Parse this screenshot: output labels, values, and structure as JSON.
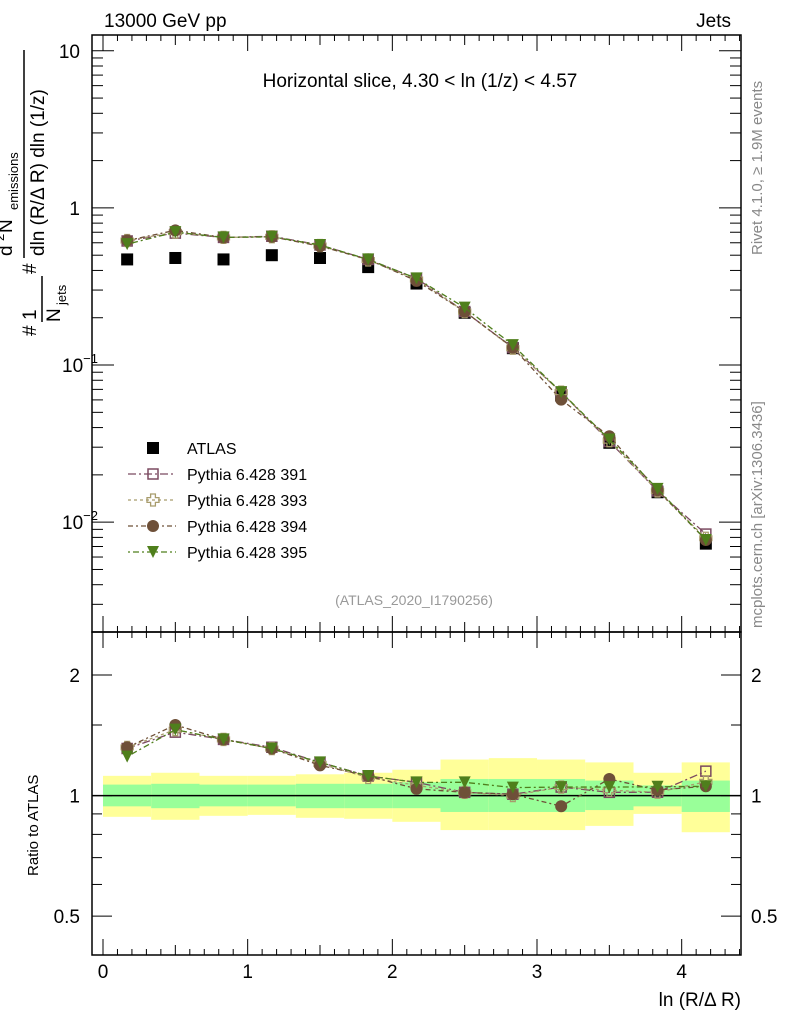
{
  "header": {
    "left": "13000 GeV pp",
    "right": "Jets",
    "side_top": "Rivet 4.1.0, ≥ 1.9M events",
    "side_bottom": "mcplots.cern.ch [arXiv:1306.3436]",
    "analysis": "(ATLAS_2020_I1790256)"
  },
  "chart_data": [
    {
      "type": "scatter",
      "title": "Horizontal slice, 4.30 < ln (1/z) < 4.57",
      "xlabel": "ln (R/Δ R)",
      "ylabel": "1/N_jets d²N_emissions / dln (R/Δ R) dln (1/z)",
      "ylabel_parts": {
        "one": "1",
        "njets": "N",
        "njets_sub": "jets",
        "d2n": "d",
        "d2n_sup": "2",
        "nem": " N",
        "nem_sub": "emissions",
        "den": "dln (R/Δ R) dln (1/z)",
        "hash": "#"
      },
      "yscale": "log",
      "xlim": [
        -0.076,
        4.41
      ],
      "ylim": [
        0.002,
        12.6
      ],
      "y_ticks": [
        {
          "v": 10,
          "label": "10"
        },
        {
          "v": 1,
          "label": "1"
        },
        {
          "v": 0.1,
          "label": "10",
          "sup": "−1"
        },
        {
          "v": 0.01,
          "label": "10",
          "sup": "−2"
        }
      ],
      "x": [
        0.167,
        0.5,
        0.833,
        1.167,
        1.5,
        1.833,
        2.167,
        2.5,
        2.833,
        3.167,
        3.5,
        3.833,
        4.167
      ],
      "bin_edges": [
        0,
        0.333,
        0.667,
        1.0,
        1.333,
        1.667,
        2.0,
        2.333,
        2.667,
        3.0,
        3.333,
        3.667,
        4.0,
        4.333
      ],
      "legend_position": "bottom-left",
      "series": [
        {
          "name": "ATLAS",
          "color": "#000000",
          "marker": "square-filled",
          "values": [
            0.47,
            0.48,
            0.47,
            0.5,
            0.48,
            0.42,
            0.33,
            0.215,
            0.128,
            0.064,
            0.032,
            0.0155,
            0.0073
          ]
        },
        {
          "name": "Pythia 6.428 391",
          "color": "#7b4a61",
          "marker": "square-open",
          "dash": "8 3 2 3",
          "values": [
            0.616,
            0.691,
            0.649,
            0.66,
            0.581,
            0.47,
            0.356,
            0.219,
            0.129,
            0.0672,
            0.0326,
            0.0158,
            0.0084
          ]
        },
        {
          "name": "Pythia 6.428 393",
          "color": "#a89c6c",
          "marker": "cross-open",
          "dash": "3 3",
          "values": [
            0.62,
            0.701,
            0.649,
            0.655,
            0.576,
            0.466,
            0.35,
            0.219,
            0.128,
            0.0672,
            0.033,
            0.0158,
            0.0079
          ]
        },
        {
          "name": "Pythia 6.428 394",
          "color": "#6e5038",
          "marker": "circle-filled",
          "dash": "5 3 2 3",
          "values": [
            0.62,
            0.72,
            0.649,
            0.655,
            0.571,
            0.47,
            0.343,
            0.219,
            0.129,
            0.0602,
            0.0352,
            0.016,
            0.0077
          ]
        },
        {
          "name": "Pythia 6.428 395",
          "color": "#4f7f1c",
          "marker": "triangle-down-filled",
          "dash": "2 3 6 3",
          "values": [
            0.588,
            0.701,
            0.649,
            0.655,
            0.581,
            0.47,
            0.356,
            0.232,
            0.134,
            0.0672,
            0.0336,
            0.0163,
            0.0077
          ]
        }
      ]
    },
    {
      "type": "scatter",
      "ylabel": "Ratio to ATLAS",
      "yscale": "log",
      "ylim": [
        0.4,
        2.56
      ],
      "y_ticks": [
        {
          "v": 2,
          "label": "2"
        },
        {
          "v": 1,
          "label": "1"
        },
        {
          "v": 0.5,
          "label": "0.5"
        }
      ],
      "x_ticks": [
        {
          "v": 0,
          "label": "0"
        },
        {
          "v": 1,
          "label": "1"
        },
        {
          "v": 2,
          "label": "2"
        },
        {
          "v": 3,
          "label": "3"
        },
        {
          "v": 4,
          "label": "4"
        }
      ],
      "band_colors": {
        "inner": "#99ff99",
        "outer": "#ffff99"
      },
      "inner_band_up": [
        1.065,
        1.07,
        1.065,
        1.065,
        1.07,
        1.07,
        1.08,
        1.1,
        1.1,
        1.1,
        1.09,
        1.06,
        1.09
      ],
      "inner_band_down": [
        0.94,
        0.93,
        0.94,
        0.94,
        0.93,
        0.93,
        0.93,
        0.91,
        0.91,
        0.91,
        0.92,
        0.94,
        0.91
      ],
      "outer_band_up": [
        1.12,
        1.14,
        1.12,
        1.12,
        1.13,
        1.14,
        1.16,
        1.23,
        1.24,
        1.23,
        1.21,
        1.14,
        1.21
      ],
      "outer_band_down": [
        0.885,
        0.87,
        0.89,
        0.895,
        0.88,
        0.875,
        0.86,
        0.82,
        0.82,
        0.82,
        0.84,
        0.9,
        0.81
      ]
    }
  ]
}
